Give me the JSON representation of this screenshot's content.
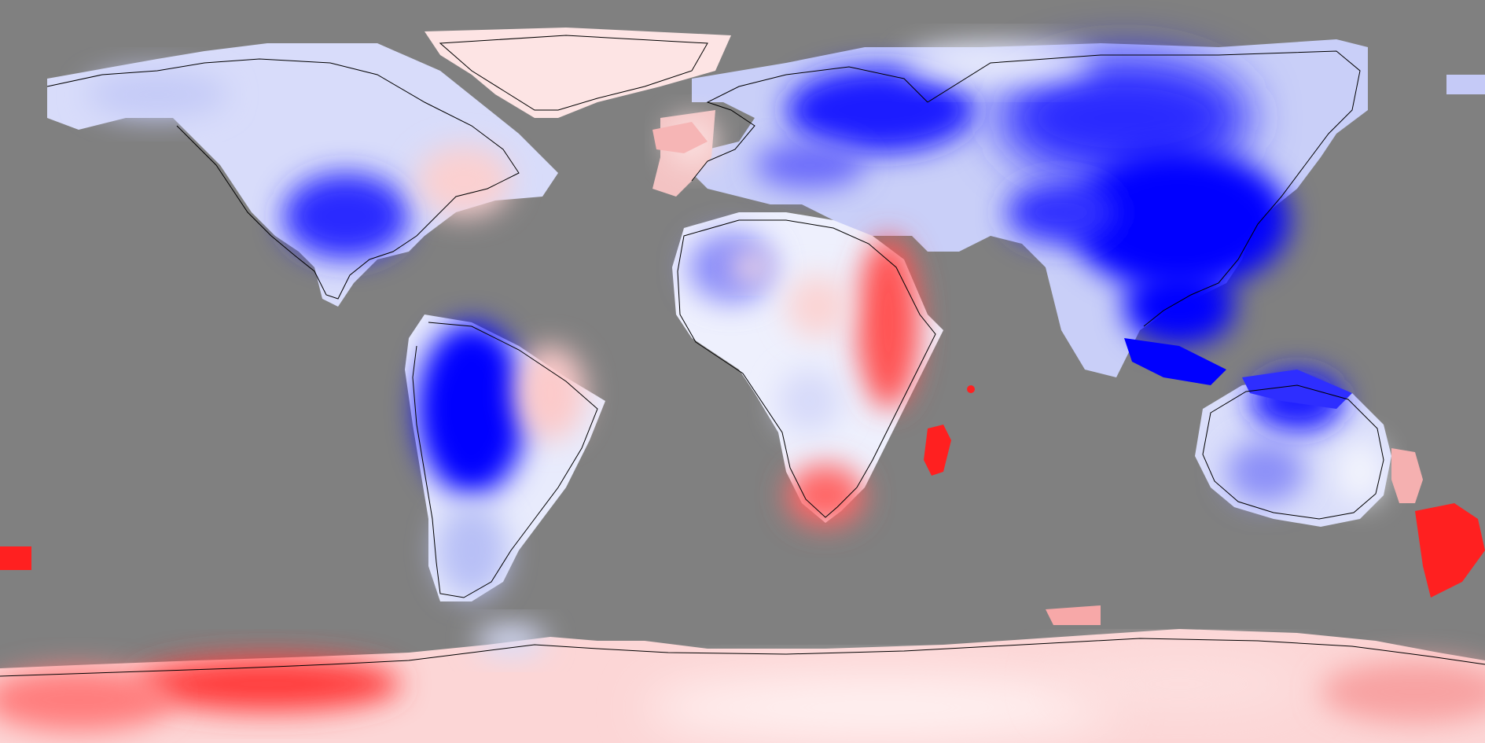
{
  "map": {
    "projection": "equirectangular",
    "background_color": "#808080",
    "coastline_color": "#000000",
    "colormap": {
      "negative": "#0000ff",
      "neutral": "#ffffff",
      "positive": "#ff0000"
    },
    "legend": null
  }
}
